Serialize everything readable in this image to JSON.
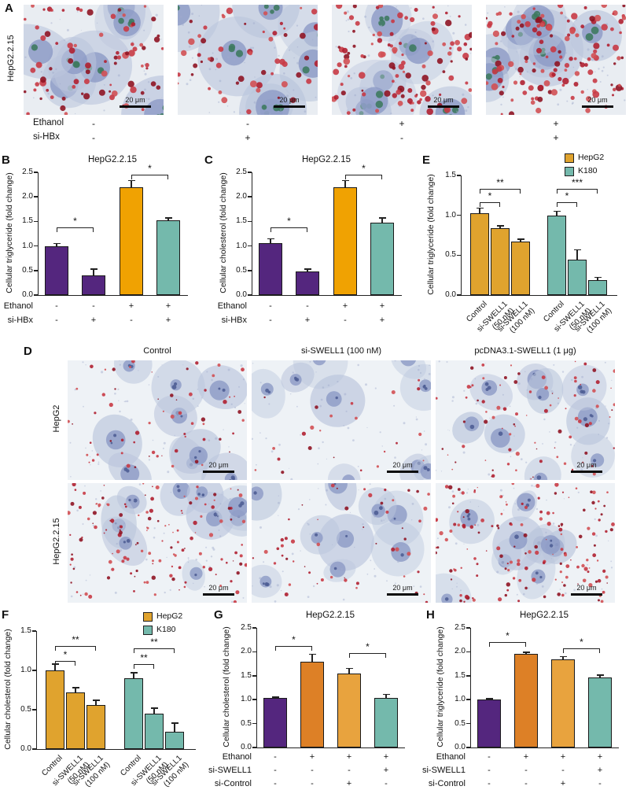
{
  "panels": {
    "A": {
      "label": "A",
      "row_label": "HepG2.2.15",
      "scale_label": "20 μm",
      "images": [
        {
          "red_level": 0.55
        },
        {
          "red_level": 0.35
        },
        {
          "red_level": 0.8
        },
        {
          "red_level": 0.95
        }
      ],
      "conditions": [
        {
          "label": "Ethanol",
          "signs": [
            "-",
            "-",
            "+",
            "+"
          ]
        },
        {
          "label": "si-HBx",
          "signs": [
            "-",
            "+",
            "-",
            "+"
          ]
        }
      ]
    },
    "B": {
      "label": "B"
    },
    "C": {
      "label": "C"
    },
    "D": {
      "label": "D",
      "scale_label": "20 μm",
      "col_titles": [
        "Control",
        "si-SWELL1 (100 nM)",
        "pcDNA3.1-SWELL1 (1 μg)"
      ],
      "row_labels": [
        "HepG2",
        "HepG2.2.15"
      ],
      "images": [
        {
          "red_level": 0.35
        },
        {
          "red_level": 0.1
        },
        {
          "red_level": 0.5
        },
        {
          "red_level": 0.85
        },
        {
          "red_level": 0.3
        },
        {
          "red_level": 1.0
        }
      ]
    },
    "E": {
      "label": "E"
    },
    "F": {
      "label": "F"
    },
    "G": {
      "label": "G"
    },
    "H": {
      "label": "H"
    }
  },
  "chart_data": [
    {
      "id": "B",
      "type": "bar",
      "title": "HepG2.2.15",
      "ylabel": "Cellular triglyceride (fold change)",
      "ylim": [
        0,
        2.5
      ],
      "yticks": [
        "0.0",
        "0.5",
        "1.0",
        "1.5",
        "2.0",
        "2.5"
      ],
      "bars": [
        {
          "value": 1.0,
          "err": 0.05,
          "color": "#54267e"
        },
        {
          "value": 0.4,
          "err": 0.13,
          "color": "#54267e"
        },
        {
          "value": 2.2,
          "err": 0.13,
          "color": "#f0a202"
        },
        {
          "value": 1.52,
          "err": 0.05,
          "color": "#74b9ac"
        }
      ],
      "conditions": {
        "rows": [
          {
            "label": "Ethanol",
            "signs": [
              "-",
              "-",
              "+",
              "+"
            ]
          },
          {
            "label": "si-HBx",
            "signs": [
              "-",
              "+",
              "-",
              "+"
            ]
          }
        ]
      },
      "significance": [
        {
          "from": 0,
          "to": 1,
          "label": "*"
        },
        {
          "from": 2,
          "to": 3,
          "label": "*"
        }
      ]
    },
    {
      "id": "C",
      "type": "bar",
      "title": "HepG2.2.15",
      "ylabel": "Cellular cholesterol (fold change)",
      "ylim": [
        0,
        2.5
      ],
      "yticks": [
        "0.0",
        "0.5",
        "1.0",
        "1.5",
        "2.0",
        "2.5"
      ],
      "bars": [
        {
          "value": 1.05,
          "err": 0.1,
          "color": "#54267e"
        },
        {
          "value": 0.48,
          "err": 0.05,
          "color": "#54267e"
        },
        {
          "value": 2.2,
          "err": 0.13,
          "color": "#f0a202"
        },
        {
          "value": 1.47,
          "err": 0.1,
          "color": "#74b9ac"
        }
      ],
      "conditions": {
        "rows": [
          {
            "label": "Ethanol",
            "signs": [
              "-",
              "-",
              "+",
              "+"
            ]
          },
          {
            "label": "si-HBx",
            "signs": [
              "-",
              "+",
              "-",
              "+"
            ]
          }
        ]
      },
      "significance": [
        {
          "from": 0,
          "to": 1,
          "label": "*"
        },
        {
          "from": 2,
          "to": 3,
          "label": "*"
        }
      ]
    },
    {
      "id": "E",
      "type": "bar",
      "title": "",
      "ylabel": "Cellular triglyceride (fold change)",
      "ylim": [
        0,
        1.5
      ],
      "yticks": [
        "0.0",
        "0.5",
        "1.0",
        "1.5"
      ],
      "legend": [
        {
          "label": "HepG2",
          "color": "#e0a32e"
        },
        {
          "label": "K180",
          "color": "#74b9ac"
        }
      ],
      "categories": [
        "Control",
        "si-SWELL1\n(50 nM)",
        "si-SWELL1\n(100 nM)",
        "Control",
        "si-SWELL1\n(50 nM)",
        "si-SWELL1\n(100 nM)"
      ],
      "bars": [
        {
          "value": 1.03,
          "err": 0.06,
          "color": "#e0a32e"
        },
        {
          "value": 0.84,
          "err": 0.03,
          "color": "#e0a32e"
        },
        {
          "value": 0.67,
          "err": 0.03,
          "color": "#e0a32e"
        },
        {
          "value": 1.0,
          "err": 0.05,
          "color": "#74b9ac"
        },
        {
          "value": 0.44,
          "err": 0.13,
          "color": "#74b9ac"
        },
        {
          "value": 0.19,
          "err": 0.03,
          "color": "#74b9ac"
        }
      ],
      "significance": [
        {
          "from": 0,
          "to": 1,
          "label": "*"
        },
        {
          "from": 0,
          "to": 2,
          "label": "**"
        },
        {
          "from": 3,
          "to": 4,
          "label": "*"
        },
        {
          "from": 3,
          "to": 5,
          "label": "***"
        }
      ]
    },
    {
      "id": "F",
      "type": "bar",
      "title": "",
      "ylabel": "Cellular cholesterol (fold change)",
      "ylim": [
        0,
        1.5
      ],
      "yticks": [
        "0.0",
        "0.5",
        "1.0",
        "1.5"
      ],
      "legend": [
        {
          "label": "HepG2",
          "color": "#e0a32e"
        },
        {
          "label": "K180",
          "color": "#74b9ac"
        }
      ],
      "categories": [
        "Control",
        "si-SWELL1\n(50 nM)",
        "si-SWELL1\n(100 nM)",
        "Control",
        "si-SWELL1\n(50 nM)",
        "si-SWELL1\n(100 nM)"
      ],
      "bars": [
        {
          "value": 1.0,
          "err": 0.08,
          "color": "#e0a32e"
        },
        {
          "value": 0.72,
          "err": 0.06,
          "color": "#e0a32e"
        },
        {
          "value": 0.56,
          "err": 0.06,
          "color": "#e0a32e"
        },
        {
          "value": 0.9,
          "err": 0.07,
          "color": "#74b9ac"
        },
        {
          "value": 0.45,
          "err": 0.07,
          "color": "#74b9ac"
        },
        {
          "value": 0.22,
          "err": 0.11,
          "color": "#74b9ac"
        }
      ],
      "significance": [
        {
          "from": 0,
          "to": 1,
          "label": "*"
        },
        {
          "from": 0,
          "to": 2,
          "label": "**"
        },
        {
          "from": 3,
          "to": 4,
          "label": "**"
        },
        {
          "from": 3,
          "to": 5,
          "label": "**"
        }
      ]
    },
    {
      "id": "G",
      "type": "bar",
      "title": "HepG2.2.15",
      "ylabel": "Cellular cholesterol (fold change)",
      "ylim": [
        0,
        2.5
      ],
      "yticks": [
        "0.0",
        "0.5",
        "1.0",
        "1.5",
        "2.0",
        "2.5"
      ],
      "bars": [
        {
          "value": 1.03,
          "err": 0.02,
          "color": "#54267e"
        },
        {
          "value": 1.8,
          "err": 0.15,
          "color": "#dd8026"
        },
        {
          "value": 1.55,
          "err": 0.1,
          "color": "#e8a33e"
        },
        {
          "value": 1.03,
          "err": 0.08,
          "color": "#74b9ac"
        }
      ],
      "conditions": {
        "rows": [
          {
            "label": "Ethanol",
            "signs": [
              "-",
              "+",
              "+",
              "+"
            ]
          },
          {
            "label": "si-SWELL1",
            "signs": [
              "-",
              "-",
              "-",
              "+"
            ]
          },
          {
            "label": "si-Control",
            "signs": [
              "-",
              "-",
              "+",
              "-"
            ]
          }
        ]
      },
      "significance": [
        {
          "from": 0,
          "to": 1,
          "label": "*"
        },
        {
          "from": 2,
          "to": 3,
          "label": "*"
        }
      ]
    },
    {
      "id": "H",
      "type": "bar",
      "title": "HepG2.2.15",
      "ylabel": "Cellular triglyceride (fold change)",
      "ylim": [
        0,
        2.5
      ],
      "yticks": [
        "0.0",
        "0.5",
        "1.0",
        "1.5",
        "2.0",
        "2.5"
      ],
      "bars": [
        {
          "value": 1.0,
          "err": 0.02,
          "color": "#54267e"
        },
        {
          "value": 1.95,
          "err": 0.04,
          "color": "#dd8026"
        },
        {
          "value": 1.85,
          "err": 0.05,
          "color": "#e8a33e"
        },
        {
          "value": 1.47,
          "err": 0.04,
          "color": "#74b9ac"
        }
      ],
      "conditions": {
        "rows": [
          {
            "label": "Ethanol",
            "signs": [
              "-",
              "+",
              "+",
              "+"
            ]
          },
          {
            "label": "si-SWELL1",
            "signs": [
              "-",
              "-",
              "-",
              "+"
            ]
          },
          {
            "label": "si-Control",
            "signs": [
              "-",
              "-",
              "+",
              "-"
            ]
          }
        ]
      },
      "significance": [
        {
          "from": 0,
          "to": 1,
          "label": "*"
        },
        {
          "from": 2,
          "to": 3,
          "label": "*"
        }
      ]
    }
  ]
}
